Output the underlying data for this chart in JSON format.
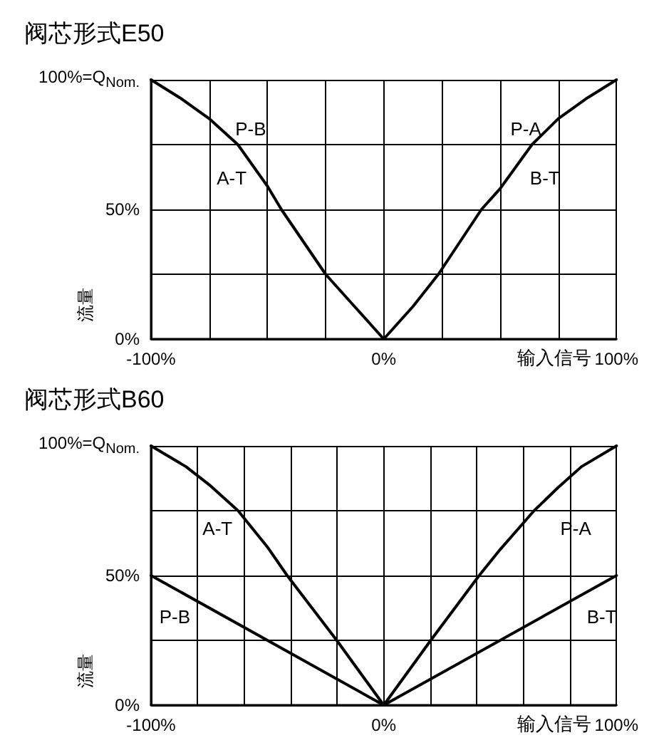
{
  "chart_data": [
    {
      "type": "line",
      "title": "阀芯形式E50",
      "xlabel": "输入信号",
      "ylabel": "流量",
      "xlim": [
        -100,
        100
      ],
      "ylim": [
        0,
        100
      ],
      "xticks": [
        {
          "value": -100,
          "label": "-100%"
        },
        {
          "value": -75,
          "label": null
        },
        {
          "value": -50,
          "label": null
        },
        {
          "value": -25,
          "label": null
        },
        {
          "value": 0,
          "label": "0%"
        },
        {
          "value": 25,
          "label": null
        },
        {
          "value": 50,
          "label": null
        },
        {
          "value": 75,
          "label": null
        },
        {
          "value": 100,
          "label": "100%"
        }
      ],
      "yticks": [
        {
          "value": 0,
          "label": "0%"
        },
        {
          "value": 25,
          "label": null
        },
        {
          "value": 50,
          "label": "50%"
        },
        {
          "value": 75,
          "label": null
        },
        {
          "value": 100,
          "label": "100%=Q$_{Nom.}$"
        }
      ],
      "grid": true,
      "marker": "none",
      "line_style": "solid",
      "series": [
        {
          "color": "#000000",
          "x": [
            -100,
            -87.5,
            -75,
            -62.7,
            -50,
            -44,
            -25,
            -12.5,
            0,
            12.5,
            23.5,
            42,
            50,
            63.7,
            75,
            87.5,
            100
          ],
          "values": [
            100,
            93,
            85,
            75,
            59,
            50,
            25,
            12.5,
            0,
            12.5,
            25,
            50,
            58,
            75,
            85,
            93,
            100
          ]
        }
      ],
      "annotations": [
        "P-B",
        "A-T",
        "P-A",
        "B-T"
      ]
    },
    {
      "type": "line",
      "title": "阀芯形式B60",
      "xlabel": "输入信号",
      "ylabel": "流量",
      "xlim": [
        -100,
        100
      ],
      "ylim": [
        0,
        100
      ],
      "xticks": [
        {
          "value": -100,
          "label": "-100%"
        },
        {
          "value": -80,
          "label": null
        },
        {
          "value": -60,
          "label": null
        },
        {
          "value": -40,
          "label": null
        },
        {
          "value": -20,
          "label": null
        },
        {
          "value": 0,
          "label": "0%"
        },
        {
          "value": 20,
          "label": null
        },
        {
          "value": 40,
          "label": null
        },
        {
          "value": 60,
          "label": null
        },
        {
          "value": 80,
          "label": null
        },
        {
          "value": 100,
          "label": "100%"
        }
      ],
      "yticks": [
        {
          "value": 0,
          "label": "0%"
        },
        {
          "value": 25,
          "label": null
        },
        {
          "value": 50,
          "label": "50%"
        },
        {
          "value": 75,
          "label": null
        },
        {
          "value": 100,
          "label": "100%=Q$_{Nom.}$"
        }
      ],
      "grid": true,
      "marker": "none",
      "line_style": "solid",
      "series": [
        {
          "color": "#000000",
          "x": [
            -100,
            -85,
            -75,
            -62.6,
            -50,
            -41.5,
            -20.2,
            0,
            20.2,
            41,
            50,
            64.6,
            75,
            85,
            100
          ],
          "values": [
            100,
            92,
            85,
            75,
            61,
            50,
            25,
            0,
            25,
            50,
            60,
            75,
            84,
            92,
            100
          ]
        },
        {
          "color": "#000000",
          "x": [
            -100,
            0,
            100
          ],
          "values": [
            50,
            0,
            50
          ]
        }
      ],
      "annotations": [
        "A-T",
        "P-A",
        "P-B",
        "B-T"
      ]
    }
  ]
}
